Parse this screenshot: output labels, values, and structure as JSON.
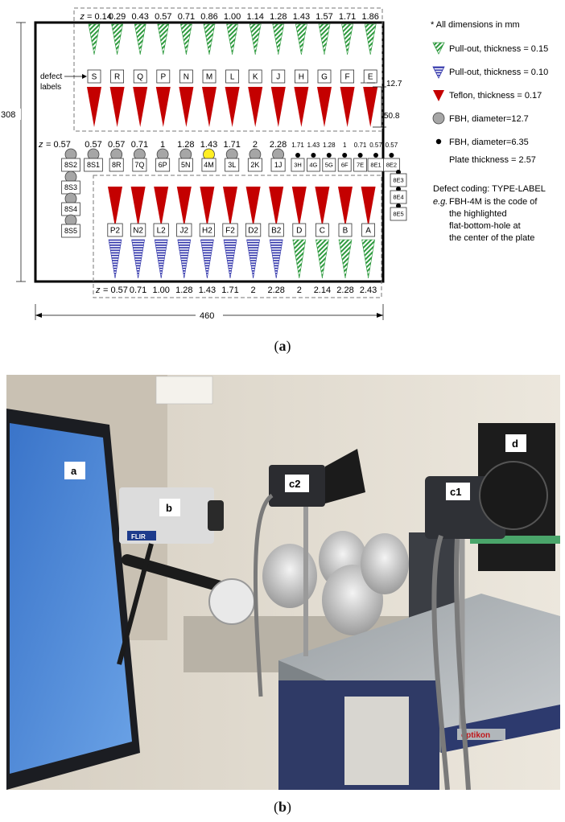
{
  "panel_a": {
    "caption_letter": "a",
    "z_prefix": "z",
    "z_top": [
      "= 0.14",
      "0.29",
      "0.43",
      "0.57",
      "0.71",
      "0.86",
      "1.00",
      "1.14",
      "1.28",
      "1.43",
      "1.57",
      "1.71",
      "1.86"
    ],
    "top_labels": [
      "S",
      "R",
      "Q",
      "P",
      "N",
      "M",
      "L",
      "K",
      "J",
      "H",
      "G",
      "F",
      "E"
    ],
    "defect_labels_text": [
      "defect",
      "labels"
    ],
    "dim_12_7": "12.7",
    "dim_50_8": "50.8",
    "dim_308": "308",
    "dim_460": "460",
    "z_mid_large_first": "= 0.57",
    "z_mid_large": [
      "0.57",
      "0.57",
      "0.71",
      "1",
      "1.28",
      "1.43",
      "1.71",
      "2",
      "2.28"
    ],
    "z_mid_small": [
      "1.71",
      "1.43",
      "1.28",
      "1",
      "0.71",
      "0.57",
      "0.57"
    ],
    "fbh_large_labels": [
      "8S1",
      "8R",
      "7Q",
      "6P",
      "5N",
      "4M",
      "3L",
      "2K",
      "1J"
    ],
    "fbh_small_labels": [
      "3H",
      "4G",
      "5G",
      "6F",
      "7E",
      "8E1",
      "8E2"
    ],
    "fbh_left_column": [
      "8S2",
      "8S3",
      "8S4",
      "8S5"
    ],
    "fbh_right_column": [
      "8E3",
      "8E4",
      "8E5"
    ],
    "bottom_labels": [
      "P2",
      "N2",
      "L2",
      "J2",
      "H2",
      "F2",
      "D2",
      "B2",
      "D",
      "C",
      "B",
      "A"
    ],
    "z_bottom_first": "= 0.57",
    "z_bottom": [
      "0.71",
      "1.00",
      "1.28",
      "1.43",
      "1.71",
      "2",
      "2.28",
      "2",
      "2.14",
      "2.28",
      "2.43"
    ],
    "legend": {
      "note": "* All dimensions in mm",
      "items": [
        "Pull-out, thickness = 0.15",
        "Pull-out, thickness = 0.10",
        "Teflon, thickness = 0.17",
        "FBH, diameter=12.7",
        "FBH, diameter=6.35",
        "Plate thickness = 2.57"
      ],
      "coding_title": "Defect coding: TYPE-LABEL",
      "coding_eg": "e.g.",
      "coding_lines": [
        "FBH-4M is the code of",
        "the highlighted",
        "flat-bottom-hole at",
        "the center of the plate"
      ]
    },
    "colors": {
      "green": "#2e9a3e",
      "blue": "#2b2fa8",
      "red": "#c40000",
      "gray": "#a6a6a6",
      "yellow": "#ffee22"
    }
  },
  "panel_b": {
    "caption_letter": "b",
    "labels": {
      "a": "a",
      "b": "b",
      "c2": "c2",
      "c1": "c1",
      "d": "d"
    },
    "camera_brand": "FLIR",
    "table_brand": "optikon"
  }
}
